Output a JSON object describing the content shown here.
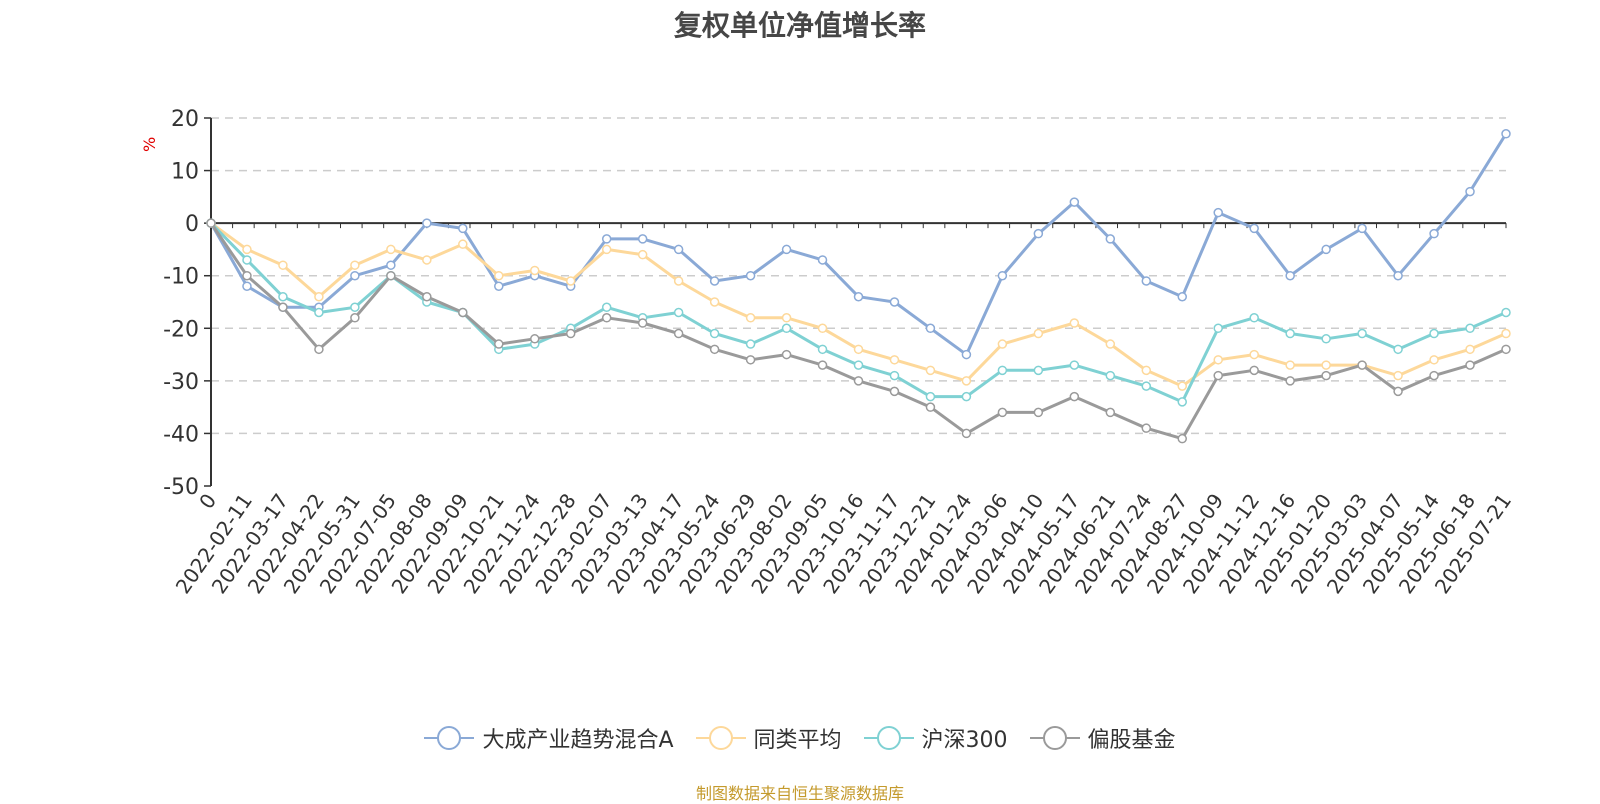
{
  "chart_data": {
    "type": "line",
    "title": "复权单位净值增长率",
    "ylabel": "%",
    "xlabel": "",
    "ylim": [
      -50,
      20
    ],
    "yticks": [
      20,
      10,
      0,
      -10,
      -20,
      -30,
      -40,
      -50
    ],
    "grid": true,
    "legend_position": "bottom",
    "categories": [
      "0",
      "2022-02-11",
      "2022-03-17",
      "2022-04-22",
      "2022-05-31",
      "2022-07-05",
      "2022-08-08",
      "2022-09-09",
      "2022-10-21",
      "2022-11-24",
      "2022-12-28",
      "2023-02-07",
      "2023-03-13",
      "2023-04-17",
      "2023-05-24",
      "2023-06-29",
      "2023-08-02",
      "2023-09-05",
      "2023-10-16",
      "2023-11-17",
      "2023-12-21",
      "2024-01-24",
      "2024-03-06",
      "2024-04-10",
      "2024-05-17",
      "2024-06-21",
      "2024-07-24",
      "2024-08-27",
      "2024-10-09",
      "2024-11-12",
      "2024-12-16",
      "2025-01-20",
      "2025-03-03",
      "2025-04-07",
      "2025-05-14",
      "2025-06-18",
      "2025-07-21"
    ],
    "series": [
      {
        "name": "大成产业趋势混合A",
        "color": "#8aa9d6",
        "values": [
          0,
          -12,
          -16,
          -16,
          -10,
          -8,
          0,
          -1,
          -12,
          -10,
          -12,
          -3,
          -3,
          -5,
          -11,
          -10,
          -5,
          -7,
          -14,
          -15,
          -20,
          -25,
          -10,
          -2,
          4,
          -3,
          -11,
          -14,
          2,
          -1,
          -10,
          -5,
          -1,
          -10,
          -2,
          6,
          17
        ]
      },
      {
        "name": "同类平均",
        "color": "#fdd89a",
        "values": [
          0,
          -5,
          -8,
          -14,
          -8,
          -5,
          -7,
          -4,
          -10,
          -9,
          -11,
          -5,
          -6,
          -11,
          -15,
          -18,
          -18,
          -20,
          -24,
          -26,
          -28,
          -30,
          -23,
          -21,
          -19,
          -23,
          -28,
          -31,
          -26,
          -25,
          -27,
          -27,
          -27,
          -29,
          -26,
          -24,
          -21
        ]
      },
      {
        "name": "沪深300",
        "color": "#7fd1d3",
        "values": [
          0,
          -7,
          -14,
          -17,
          -16,
          -10,
          -15,
          -17,
          -24,
          -23,
          -20,
          -16,
          -18,
          -17,
          -21,
          -23,
          -20,
          -24,
          -27,
          -29,
          -33,
          -33,
          -28,
          -28,
          -27,
          -29,
          -31,
          -34,
          -20,
          -18,
          -21,
          -22,
          -21,
          -24,
          -21,
          -20,
          -17
        ]
      },
      {
        "name": "偏股基金",
        "color": "#9a9a9a",
        "values": [
          0,
          -10,
          -16,
          -24,
          -18,
          -10,
          -14,
          -17,
          -23,
          -22,
          -21,
          -18,
          -19,
          -21,
          -24,
          -26,
          -25,
          -27,
          -30,
          -32,
          -35,
          -40,
          -36,
          -36,
          -33,
          -36,
          -39,
          -41,
          -29,
          -28,
          -30,
          -29,
          -27,
          -32,
          -29,
          -27,
          -24
        ]
      }
    ]
  },
  "source_text": "制图数据来自恒生聚源数据库"
}
